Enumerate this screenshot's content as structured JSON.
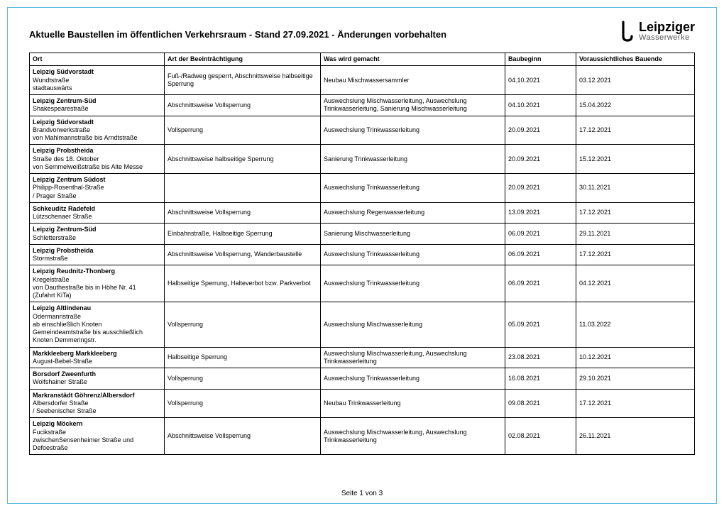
{
  "title": "Aktuelle Baustellen im öffentlichen Verkehrsraum - Stand 27.09.2021 - Änderungen vorbehalten",
  "logo": {
    "main": "Leipziger",
    "sub": "Wasserwerke"
  },
  "columns": [
    "Ort",
    "Art der Beeinträchtigung",
    "Was wird gemacht",
    "Baubeginn",
    "Voraussichtliches Bauende"
  ],
  "rows": [
    {
      "ort_main": "Leipzig Südvorstadt",
      "ort_sub": "Wundtstraße\nstadtauswärts",
      "art": "Fuß-/Radweg gesperrt, Abschnittsweise halbseitige Sperrung",
      "was": "Neubau Mischwassersammler",
      "beg": "04.10.2021",
      "end": "03.12.2021"
    },
    {
      "ort_main": "Leipzig Zentrum-Süd",
      "ort_sub": "Shakespearestraße",
      "art": "Abschnittsweise Vollsperrung",
      "was": "Auswechslung Mischwasserleitung, Auswechslung Trinkwasserleitung, Sanierung Mischwasserleitung",
      "beg": "04.10.2021",
      "end": "15.04.2022"
    },
    {
      "ort_main": "Leipzig Südvorstadt",
      "ort_sub": "Brandvorwerkstraße\nvon Mahlmannstraße bis Arndtstraße",
      "art": "Vollsperrung",
      "was": "Auswechslung Trinkwasserleitung",
      "beg": "20.09.2021",
      "end": "17.12.2021"
    },
    {
      "ort_main": "Leipzig Probstheida",
      "ort_sub": "Straße des 18. Oktober\nvon Semmelweißstraße bis Alte Messe",
      "art": "Abschnittsweise halbseitige Sperrung",
      "was": "Sanierung Trinkwasserleitung",
      "beg": "20.09.2021",
      "end": "15.12.2021"
    },
    {
      "ort_main": "Leipzig Zentrum Südost",
      "ort_sub": "Philipp-Rosenthal-Straße\n/ Prager Straße",
      "art": "",
      "was": "Auswechslung Trinkwasserleitung",
      "beg": "20.09.2021",
      "end": "30.11.2021"
    },
    {
      "ort_main": "Schkeuditz Radefeld",
      "ort_sub": "Lützschenaer Straße",
      "art": "Abschnittsweise Vollsperrung",
      "was": "Auswechslung Regenwasserleitung",
      "beg": "13.09.2021",
      "end": "17.12.2021"
    },
    {
      "ort_main": "Leipzig Zentrum-Süd",
      "ort_sub": "Schletterstraße",
      "art": "Einbahnstraße, Halbseitige Sperrung",
      "was": "Sanierung Mischwasserleitung",
      "beg": "06.09.2021",
      "end": "29.11.2021"
    },
    {
      "ort_main": "Leipzig Probstheida",
      "ort_sub": "Stormstraße",
      "art": "Abschnittsweise Vollsperrung, Wanderbaustelle",
      "was": "Auswechslung Trinkwasserleitung",
      "beg": "06.09.2021",
      "end": "17.12.2021"
    },
    {
      "ort_main": "Leipzig Reudnitz-Thonberg",
      "ort_sub": "Kregelstraße\nvon Dauthestraße bis in Höhe Nr. 41\n(Zufahrt KiTa)",
      "art": "Halbseitige Sperrung, Halteverbot bzw. Parkverbot",
      "was": "Auswechslung Trinkwasserleitung",
      "beg": "06.09.2021",
      "end": "04.12.2021"
    },
    {
      "ort_main": "Leipzig Altlindenau",
      "ort_sub": "Odermannstraße\nab einschließlich Knoten\nGemeindeamtstraße bis ausschließlich\nKnoten Demmeringstr.",
      "art": "Vollsperrung",
      "was": "Auswechslung Mischwasserleitung",
      "beg": "05.09.2021",
      "end": "11.03.2022"
    },
    {
      "ort_main": "Markkleeberg Markkleeberg",
      "ort_sub": "August-Bebel-Straße",
      "art": "Halbseitige Sperrung",
      "was": "Auswechslung Mischwasserleitung, Auswechslung Trinkwasserleitung",
      "beg": "23.08.2021",
      "end": "10.12.2021"
    },
    {
      "ort_main": "Borsdorf Zweenfurth",
      "ort_sub": "Wolfshainer Straße",
      "art": "Vollsperrung",
      "was": "Auswechslung Trinkwasserleitung",
      "beg": "16.08.2021",
      "end": "29.10.2021"
    },
    {
      "ort_main": "Markranstädt Göhrenz/Albersdorf",
      "ort_sub": "Albersdorfer Straße\n/ Seebenischer Straße",
      "art": "Vollsperrung",
      "was": "Neubau Trinkwasserleitung",
      "beg": "09.08.2021",
      "end": "17.12.2021"
    },
    {
      "ort_main": "Leipzig Möckern",
      "ort_sub": "Fucikstraße\nzwischenSensenheimer Straße und Defoestraße",
      "art": "Abschnittsweise Vollsperrung",
      "was": "Auswechslung Mischwasserleitung, Auswechslung Trinkwasserleitung",
      "beg": "02.08.2021",
      "end": "26.11.2021"
    }
  ],
  "footer": "Seite 1 von 3"
}
